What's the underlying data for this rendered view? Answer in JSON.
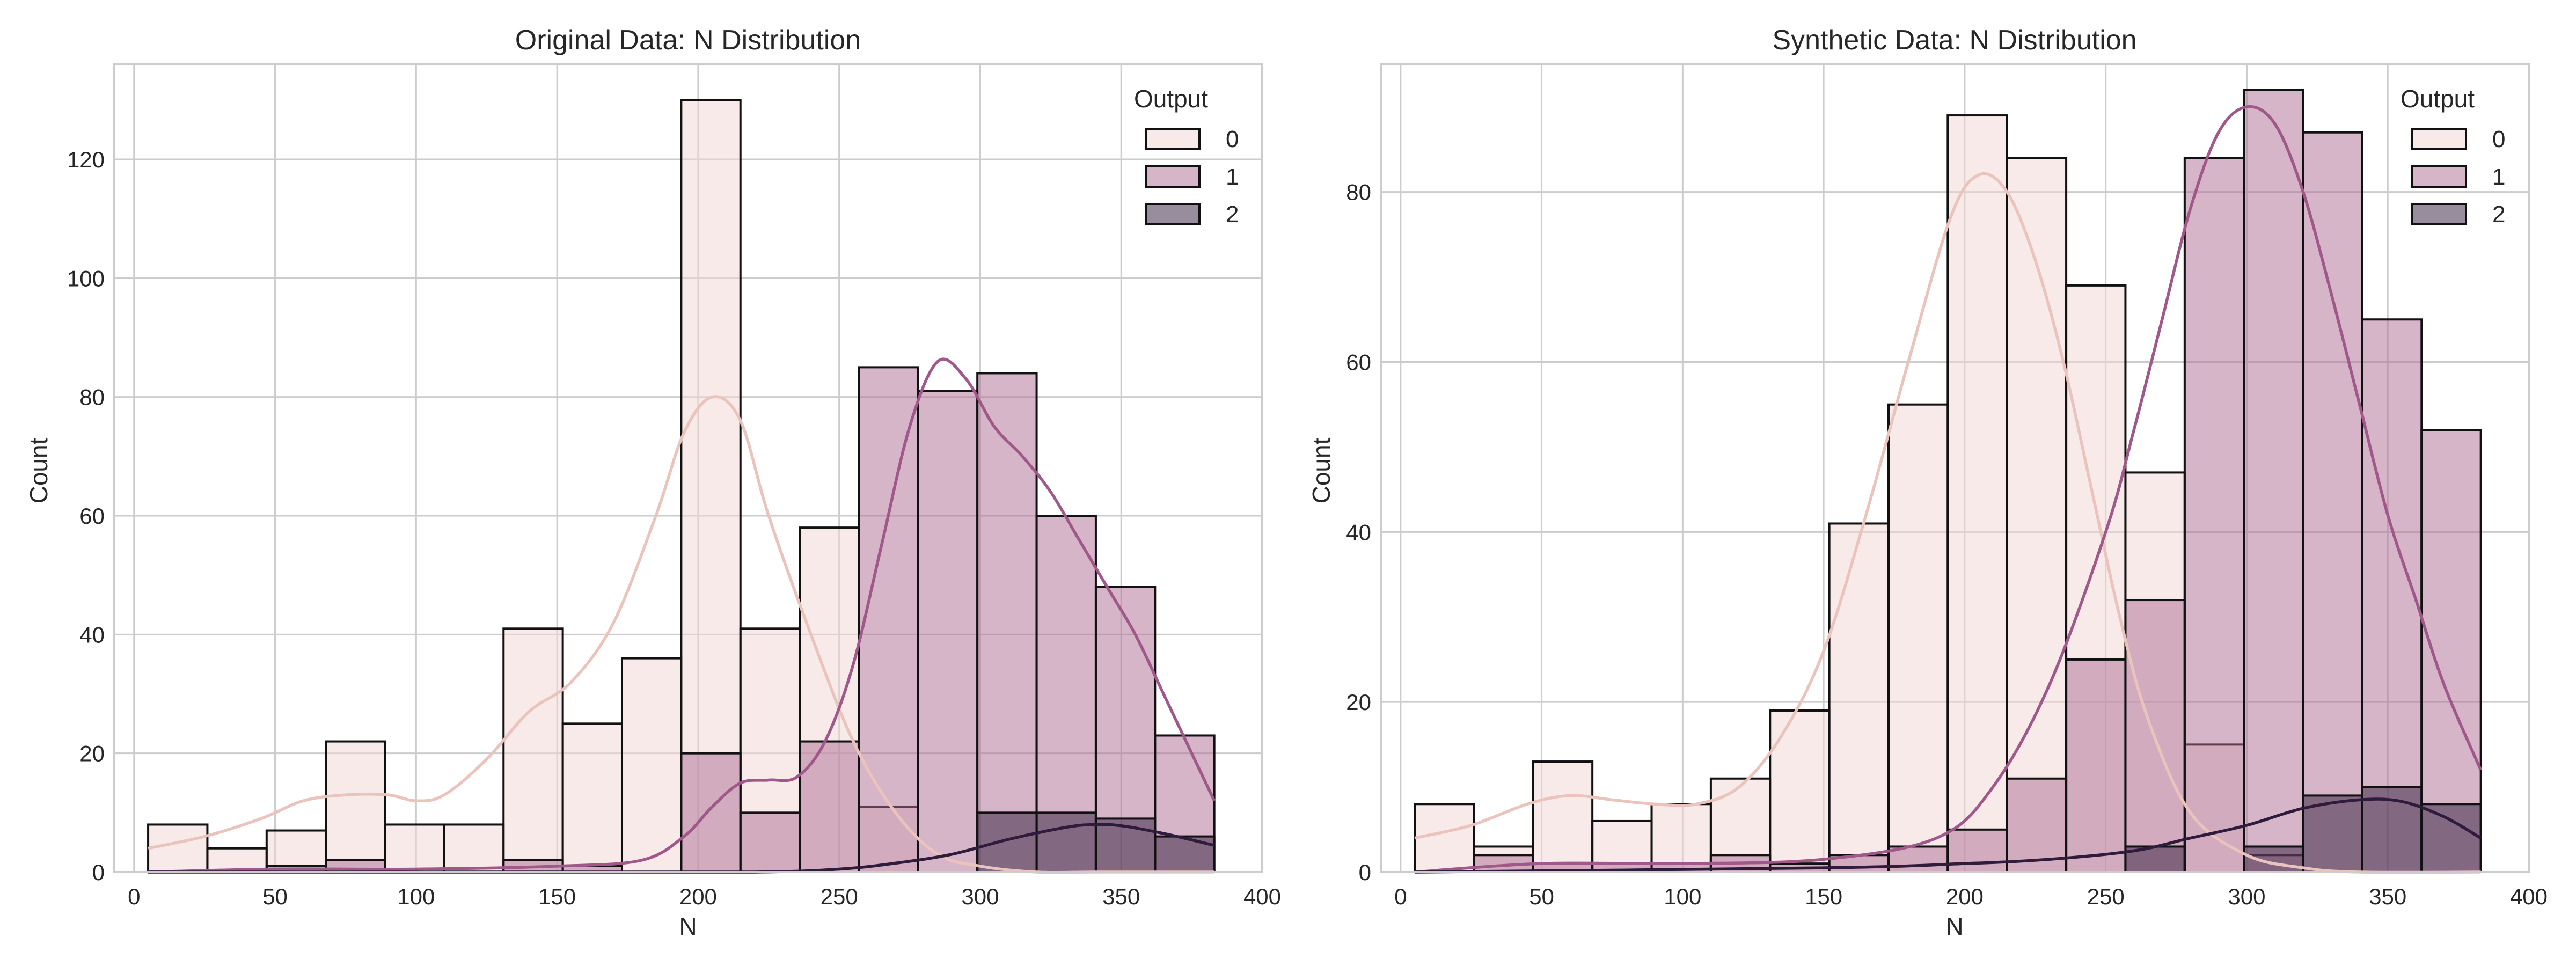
{
  "chart_data": [
    {
      "type": "bar",
      "title": "Original Data: N Distribution",
      "xlabel": "N",
      "ylabel": "Count",
      "xlim": [
        -7,
        400
      ],
      "ylim": [
        0,
        136
      ],
      "xticks": [
        0,
        50,
        100,
        150,
        200,
        250,
        300,
        350,
        400
      ],
      "yticks": [
        0,
        20,
        40,
        60,
        80,
        100,
        120
      ],
      "grid": true,
      "legend": {
        "title": "Output",
        "position": "top-right",
        "entries": [
          "0",
          "1",
          "2"
        ]
      },
      "bin_edges": [
        5,
        26,
        47,
        68,
        89,
        110,
        131,
        152,
        173,
        194,
        215,
        236,
        257,
        278,
        299,
        320,
        341,
        362,
        383
      ],
      "series": [
        {
          "name": "0",
          "values": [
            8,
            4,
            7,
            22,
            8,
            8,
            41,
            25,
            36,
            130,
            41,
            58,
            11,
            0,
            0,
            0,
            0,
            0
          ]
        },
        {
          "name": "1",
          "values": [
            0,
            0,
            1,
            2,
            0,
            0,
            2,
            1,
            0,
            20,
            10,
            22,
            85,
            81,
            84,
            60,
            48,
            23
          ]
        },
        {
          "name": "2",
          "values": [
            0,
            0,
            0,
            0,
            0,
            0,
            0,
            0,
            0,
            0,
            0,
            0,
            0,
            0,
            10,
            10,
            9,
            6
          ]
        }
      ],
      "kde": [
        {
          "name": "0",
          "x": [
            5,
            25,
            45,
            60,
            75,
            90,
            100,
            110,
            125,
            140,
            155,
            170,
            185,
            195,
            205,
            215,
            225,
            240,
            255,
            270,
            285,
            300,
            320,
            340,
            360,
            383
          ],
          "y": [
            4,
            6,
            9,
            12,
            13,
            13,
            12,
            13,
            19,
            27,
            32,
            42,
            60,
            74,
            80,
            76,
            60,
            40,
            22,
            10,
            3,
            1,
            0,
            0,
            0,
            0
          ]
        },
        {
          "name": "1",
          "x": [
            5,
            50,
            100,
            150,
            180,
            195,
            205,
            215,
            225,
            235,
            245,
            255,
            265,
            275,
            285,
            295,
            305,
            315,
            325,
            335,
            345,
            355,
            365,
            375,
            383
          ],
          "y": [
            0,
            0.5,
            0.5,
            1,
            2,
            6,
            11,
            15,
            15.5,
            16,
            22,
            35,
            55,
            75,
            86,
            83,
            75,
            70,
            64,
            56,
            48,
            40,
            30,
            20,
            12
          ]
        },
        {
          "name": "2",
          "x": [
            5,
            150,
            220,
            250,
            270,
            290,
            310,
            330,
            340,
            350,
            365,
            383
          ],
          "y": [
            0,
            0,
            0,
            0.5,
            1.5,
            3,
            5.5,
            7.5,
            8,
            7.8,
            6.5,
            4.5
          ]
        }
      ]
    },
    {
      "type": "bar",
      "title": "Synthetic Data: N Distribution",
      "xlabel": "N",
      "ylabel": "Count",
      "xlim": [
        -7,
        400
      ],
      "ylim": [
        0,
        95
      ],
      "xticks": [
        0,
        50,
        100,
        150,
        200,
        250,
        300,
        350,
        400
      ],
      "yticks": [
        0,
        20,
        40,
        60,
        80
      ],
      "grid": true,
      "legend": {
        "title": "Output",
        "position": "top-right",
        "entries": [
          "0",
          "1",
          "2"
        ]
      },
      "bin_edges": [
        5,
        26,
        47,
        68,
        89,
        110,
        131,
        152,
        173,
        194,
        215,
        236,
        257,
        278,
        299,
        320,
        341,
        362,
        383
      ],
      "series": [
        {
          "name": "0",
          "values": [
            8,
            3,
            13,
            6,
            8,
            11,
            19,
            41,
            55,
            89,
            84,
            69,
            47,
            15,
            2,
            0,
            0,
            0
          ]
        },
        {
          "name": "1",
          "values": [
            0,
            2,
            1,
            1,
            1,
            2,
            1,
            2,
            3,
            5,
            11,
            25,
            32,
            84,
            92,
            87,
            65,
            52
          ]
        },
        {
          "name": "2",
          "values": [
            0,
            0,
            0,
            0,
            0,
            0,
            0,
            0,
            0,
            0,
            0,
            0,
            3,
            0,
            3,
            9,
            10,
            8
          ]
        }
      ],
      "kde": [
        {
          "name": "0",
          "x": [
            5,
            25,
            45,
            60,
            75,
            90,
            105,
            120,
            135,
            150,
            165,
            180,
            195,
            205,
            215,
            225,
            235,
            245,
            255,
            265,
            280,
            300,
            320,
            340,
            383
          ],
          "y": [
            4,
            5.5,
            8,
            9,
            8.5,
            8,
            8,
            10,
            16,
            26,
            42,
            60,
            77,
            82,
            80,
            72,
            60,
            45,
            30,
            18,
            7,
            2,
            0.5,
            0,
            0
          ]
        },
        {
          "name": "1",
          "x": [
            5,
            50,
            100,
            150,
            190,
            210,
            230,
            250,
            260,
            270,
            280,
            290,
            300,
            310,
            320,
            330,
            340,
            350,
            360,
            370,
            383
          ],
          "y": [
            0,
            1,
            1,
            1.5,
            4,
            10,
            22,
            40,
            52,
            65,
            78,
            87,
            90,
            88,
            80,
            68,
            55,
            42,
            32,
            22,
            12
          ]
        },
        {
          "name": "2",
          "x": [
            5,
            150,
            200,
            230,
            260,
            280,
            300,
            320,
            340,
            355,
            370,
            383
          ],
          "y": [
            0,
            0.5,
            1,
            1.5,
            2.5,
            4,
            5.5,
            7.5,
            8.5,
            8.3,
            6.5,
            4
          ]
        }
      ]
    }
  ],
  "colors": {
    "series": [
      "#f1d5d1",
      "#ad6b93",
      "#2f1b3c"
    ],
    "kde": [
      "#ebc3bd",
      "#a0588a",
      "#2f1b3c"
    ],
    "grid": "#cccccc",
    "edge": "#111111",
    "spine": "#cccccc"
  }
}
